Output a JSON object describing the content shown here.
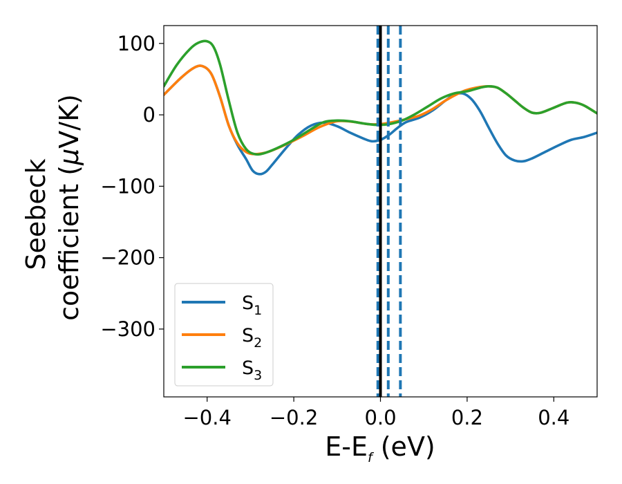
{
  "chart_data": {
    "type": "line",
    "title": "",
    "xlabel": "E-E",
    "xlabel_sub": "f",
    "xlabel_unit": " (eV)",
    "ylabel_line1": "Seebeck",
    "ylabel_line2": "coefficient  (",
    "ylabel_mu": "μ",
    "ylabel_unit": "V/K)",
    "xlim": [
      -0.5,
      0.5
    ],
    "ylim": [
      -395,
      125
    ],
    "xticks": [
      -0.4,
      -0.2,
      0.0,
      0.2,
      0.4
    ],
    "xtick_labels": [
      "−0.4",
      "−0.2",
      "0.0",
      "0.2",
      "0.4"
    ],
    "yticks": [
      100,
      0,
      -100,
      -200,
      -300
    ],
    "ytick_labels": [
      "100",
      "0",
      "−100",
      "−200",
      "−300"
    ],
    "grid": false,
    "legend_position": "lower-left",
    "vertical_lines": {
      "solid": {
        "x": 0.0,
        "color": "#000000"
      },
      "dashed": {
        "x": [
          -0.006,
          0.018,
          0.046
        ],
        "color": "#1f77b4"
      }
    },
    "series": [
      {
        "name": "S",
        "sub": "1",
        "color": "#1f77b4",
        "points": [
          [
            -0.5,
            28
          ],
          [
            -0.46,
            52
          ],
          [
            -0.43,
            66
          ],
          [
            -0.41,
            68
          ],
          [
            -0.39,
            57
          ],
          [
            -0.37,
            25
          ],
          [
            -0.35,
            -15
          ],
          [
            -0.33,
            -42
          ],
          [
            -0.31,
            -62
          ],
          [
            -0.295,
            -78
          ],
          [
            -0.28,
            -83
          ],
          [
            -0.265,
            -80
          ],
          [
            -0.25,
            -70
          ],
          [
            -0.22,
            -48
          ],
          [
            -0.19,
            -28
          ],
          [
            -0.16,
            -15
          ],
          [
            -0.13,
            -11
          ],
          [
            -0.1,
            -16
          ],
          [
            -0.07,
            -25
          ],
          [
            -0.04,
            -33
          ],
          [
            -0.02,
            -37
          ],
          [
            0.0,
            -35
          ],
          [
            0.02,
            -28
          ],
          [
            0.04,
            -18
          ],
          [
            0.06,
            -10
          ],
          [
            0.09,
            -4
          ],
          [
            0.12,
            6
          ],
          [
            0.15,
            20
          ],
          [
            0.17,
            28
          ],
          [
            0.19,
            30
          ],
          [
            0.21,
            22
          ],
          [
            0.23,
            5
          ],
          [
            0.25,
            -18
          ],
          [
            0.27,
            -40
          ],
          [
            0.29,
            -57
          ],
          [
            0.31,
            -64
          ],
          [
            0.33,
            -65
          ],
          [
            0.35,
            -61
          ],
          [
            0.38,
            -52
          ],
          [
            0.41,
            -43
          ],
          [
            0.44,
            -35
          ],
          [
            0.47,
            -31
          ],
          [
            0.5,
            -25
          ]
        ]
      },
      {
        "name": "S",
        "sub": "2",
        "color": "#ff7f0e",
        "points": [
          [
            -0.5,
            28
          ],
          [
            -0.46,
            52
          ],
          [
            -0.43,
            66
          ],
          [
            -0.41,
            68
          ],
          [
            -0.39,
            57
          ],
          [
            -0.37,
            25
          ],
          [
            -0.35,
            -15
          ],
          [
            -0.33,
            -40
          ],
          [
            -0.31,
            -52
          ],
          [
            -0.29,
            -55
          ],
          [
            -0.26,
            -52
          ],
          [
            -0.22,
            -42
          ],
          [
            -0.18,
            -30
          ],
          [
            -0.14,
            -17
          ],
          [
            -0.1,
            -9
          ],
          [
            -0.06,
            -10
          ],
          [
            -0.03,
            -13
          ],
          [
            0.0,
            -13
          ],
          [
            0.03,
            -10
          ],
          [
            0.06,
            -6
          ],
          [
            0.09,
            -1
          ],
          [
            0.12,
            8
          ],
          [
            0.15,
            20
          ],
          [
            0.18,
            30
          ],
          [
            0.2,
            35
          ],
          [
            0.23,
            39
          ],
          [
            0.25,
            40
          ],
          [
            0.27,
            38
          ],
          [
            0.29,
            30
          ],
          [
            0.31,
            20
          ],
          [
            0.33,
            10
          ],
          [
            0.35,
            3
          ],
          [
            0.37,
            3
          ],
          [
            0.4,
            10
          ],
          [
            0.43,
            17
          ],
          [
            0.45,
            17
          ],
          [
            0.47,
            13
          ],
          [
            0.5,
            2
          ]
        ]
      },
      {
        "name": "S",
        "sub": "3",
        "color": "#2ca02c",
        "points": [
          [
            -0.5,
            40
          ],
          [
            -0.47,
            70
          ],
          [
            -0.44,
            92
          ],
          [
            -0.42,
            101
          ],
          [
            -0.4,
            103
          ],
          [
            -0.385,
            95
          ],
          [
            -0.37,
            70
          ],
          [
            -0.35,
            20
          ],
          [
            -0.33,
            -25
          ],
          [
            -0.31,
            -48
          ],
          [
            -0.29,
            -55
          ],
          [
            -0.27,
            -54
          ],
          [
            -0.24,
            -47
          ],
          [
            -0.2,
            -35
          ],
          [
            -0.16,
            -20
          ],
          [
            -0.13,
            -10
          ],
          [
            -0.1,
            -8
          ],
          [
            -0.07,
            -9
          ],
          [
            -0.04,
            -12
          ],
          [
            -0.01,
            -14
          ],
          [
            0.02,
            -13
          ],
          [
            0.05,
            -8
          ],
          [
            0.08,
            1
          ],
          [
            0.11,
            12
          ],
          [
            0.14,
            23
          ],
          [
            0.17,
            30
          ],
          [
            0.2,
            33
          ],
          [
            0.23,
            38
          ],
          [
            0.25,
            40
          ],
          [
            0.27,
            38
          ],
          [
            0.29,
            30
          ],
          [
            0.31,
            20
          ],
          [
            0.33,
            10
          ],
          [
            0.35,
            3
          ],
          [
            0.37,
            3
          ],
          [
            0.4,
            10
          ],
          [
            0.43,
            17
          ],
          [
            0.45,
            17
          ],
          [
            0.47,
            13
          ],
          [
            0.5,
            2
          ]
        ]
      }
    ]
  }
}
